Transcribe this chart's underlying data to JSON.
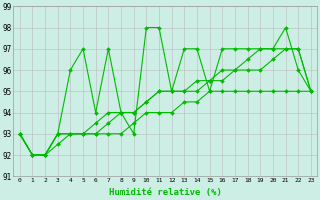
{
  "xlabel": "Humidité relative (%)",
  "xlim_min": -0.5,
  "xlim_max": 23.5,
  "ylim": [
    91,
    99
  ],
  "yticks": [
    91,
    92,
    93,
    94,
    95,
    96,
    97,
    98,
    99
  ],
  "xticks": [
    0,
    1,
    2,
    3,
    4,
    5,
    6,
    7,
    8,
    9,
    10,
    11,
    12,
    13,
    14,
    15,
    16,
    17,
    18,
    19,
    20,
    21,
    22,
    23
  ],
  "background_color": "#cceee4",
  "grid_color": "#bbbbbb",
  "line_color": "#00bb00",
  "series1": [
    93,
    92,
    92,
    93,
    96,
    97,
    94,
    97,
    94,
    93,
    98,
    98,
    95,
    97,
    97,
    95,
    97,
    97,
    97,
    97,
    97,
    98,
    96,
    95
  ],
  "series2": [
    93,
    92,
    92,
    93,
    93,
    93,
    93.5,
    94,
    94,
    94,
    94.5,
    95,
    95,
    95,
    95.5,
    95.5,
    96,
    96,
    96.5,
    97,
    97,
    97,
    97,
    95
  ],
  "series3": [
    93,
    92,
    92,
    93,
    93,
    93,
    93,
    93.5,
    94,
    94,
    94.5,
    95,
    95,
    95,
    95,
    95.5,
    95.5,
    96,
    96,
    96,
    96.5,
    97,
    97,
    95
  ],
  "series4": [
    93,
    92,
    92,
    92.5,
    93,
    93,
    93,
    93,
    93,
    93.5,
    94,
    94,
    94,
    94.5,
    94.5,
    95,
    95,
    95,
    95,
    95,
    95,
    95,
    95,
    95
  ]
}
